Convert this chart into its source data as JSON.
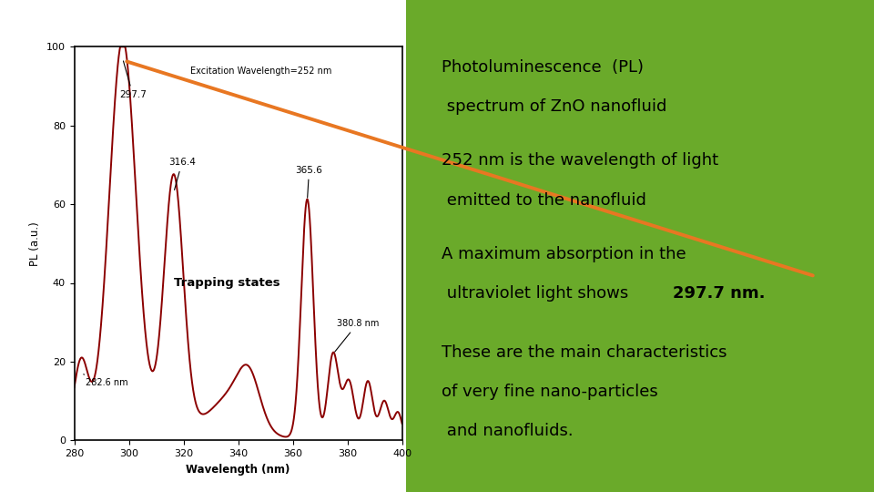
{
  "bg_outer": "#c0369a",
  "bg_green": "#6aaa2a",
  "bg_white": "#ffffff",
  "curve_color": "#8b0000",
  "arrow_color": "#e87722",
  "xlabel": "Wavelength (nm)",
  "ylabel": "PL (a.u.)",
  "plot_title": "Excitation Wavelength=252 nm",
  "xlim": [
    280,
    400
  ],
  "ylim": [
    0,
    100
  ],
  "xticks": [
    280,
    300,
    320,
    340,
    360,
    380,
    400
  ],
  "yticks": [
    0,
    20,
    40,
    60,
    80,
    100
  ],
  "trapping_label": "Trapping states",
  "text1_line1": "Photoluminescence  (PL)",
  "text1_line2": " spectrum of ZnO nanofluid",
  "text2_line1": "252 nm is the wavelength of light",
  "text2_line2": " emitted to the nanofluid",
  "text3_line1": "A maximum absorption in the",
  "text3_line2": " ultraviolet light shows ",
  "text3_bold": "297.7 nm.",
  "text4_line1": "These are the main characteristics",
  "text4_line2": "of very fine nano-particles",
  "text4_line3": " and nanofluids.",
  "white_panel": [
    0.0,
    0.0,
    0.485,
    1.0
  ],
  "green_panel": [
    0.465,
    0.0,
    0.535,
    1.0
  ],
  "plot_axes": [
    0.085,
    0.105,
    0.375,
    0.8
  ]
}
